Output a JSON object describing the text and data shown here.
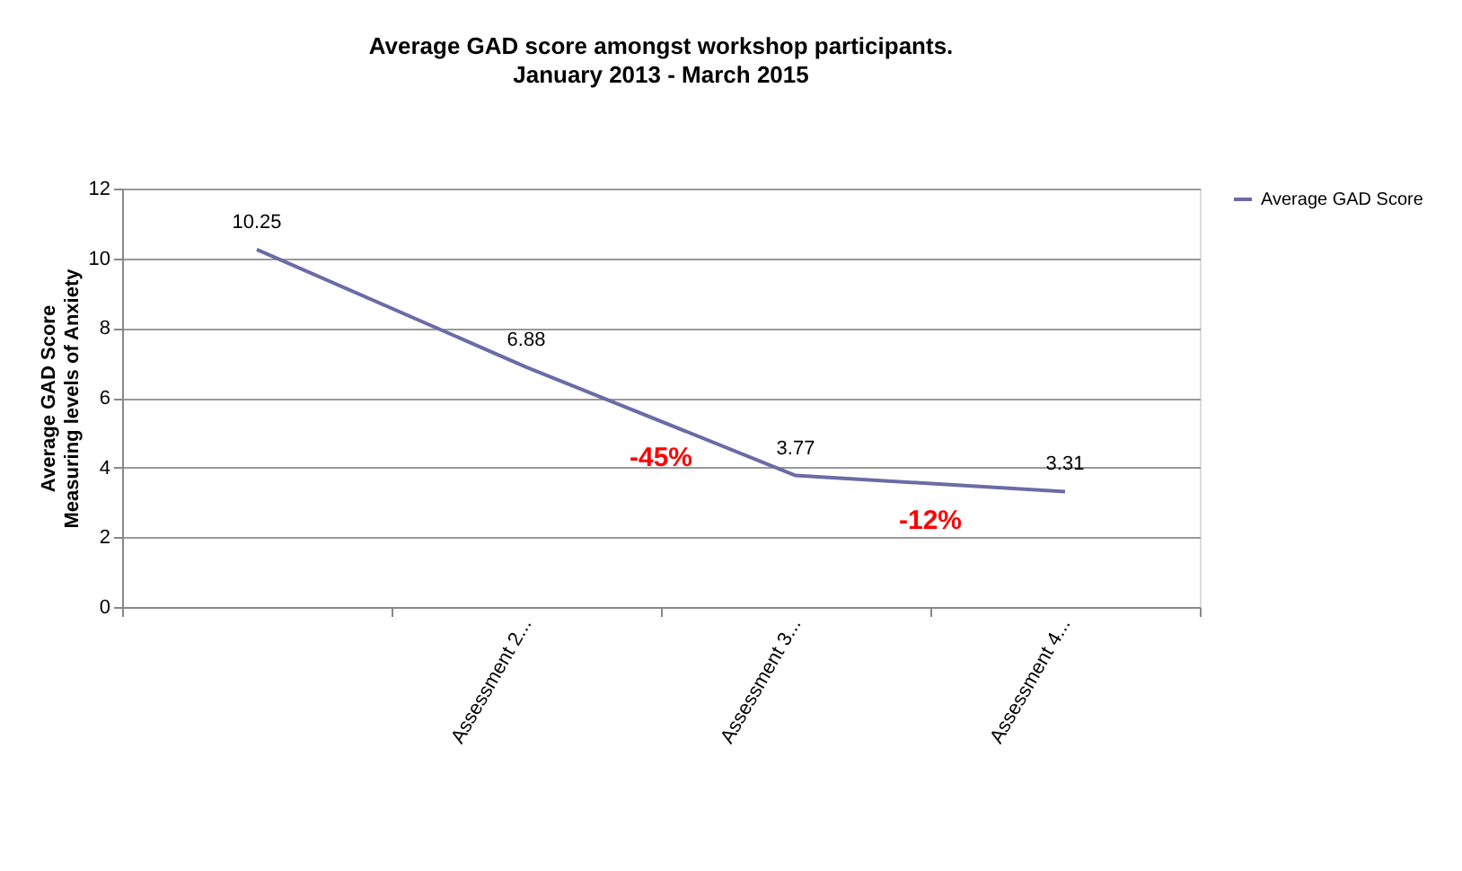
{
  "chart_data": {
    "type": "line",
    "title": "Average GAD score amongst workshop participants.",
    "subtitle": "January 2013 - March 2015",
    "ylabel": "Average GAD Score\nMeasuring levels of Anxiety",
    "categories": [
      null,
      "Assessment 2...",
      "Assessment 3...",
      "Assessment 4..."
    ],
    "series": [
      {
        "name": "Average GAD Score",
        "color": "#6b6ba6",
        "values": [
          10.25,
          6.88,
          3.77,
          3.31
        ]
      }
    ],
    "ylim": [
      0,
      12
    ],
    "yticks": [
      0,
      2,
      4,
      6,
      8,
      10,
      12
    ],
    "grid": "y",
    "legend": "right",
    "data_labels": true,
    "marker": "none",
    "annotations": [
      "-45%",
      "-12%"
    ]
  }
}
